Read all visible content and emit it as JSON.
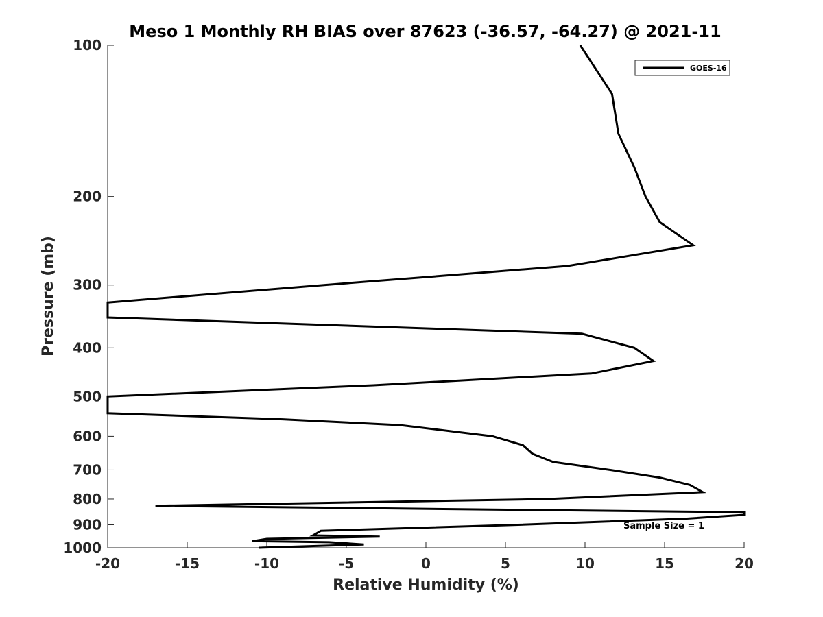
{
  "chart_data": {
    "type": "line",
    "title": "Meso 1 Monthly RH BIAS over 87623 (-36.57, -64.27) @ 2021-11",
    "xlabel": "Relative Humidity (%)",
    "ylabel": "Pressure (mb)",
    "xlim": [
      -20,
      20
    ],
    "ylim": [
      100,
      1000
    ],
    "yscale": "log",
    "y_reversed": true,
    "grid": false,
    "legend_position": "top-right",
    "x_ticks": [
      "-20",
      "-15",
      "-10",
      "-5",
      "0",
      "5",
      "10",
      "15",
      "20"
    ],
    "y_ticks": [
      "100",
      "200",
      "300",
      "400",
      "500",
      "600",
      "700",
      "800",
      "900",
      "1000"
    ],
    "annotation": "Sample Size = 1",
    "series": [
      {
        "name": "GOES-16",
        "color": "#000000",
        "points": [
          {
            "x": 9.7,
            "y": 100
          },
          {
            "x": 11.7,
            "y": 125
          },
          {
            "x": 12.1,
            "y": 150
          },
          {
            "x": 13.1,
            "y": 175
          },
          {
            "x": 13.8,
            "y": 200
          },
          {
            "x": 14.7,
            "y": 225
          },
          {
            "x": 16.8,
            "y": 250
          },
          {
            "x": 8.9,
            "y": 275
          },
          {
            "x": -6.4,
            "y": 300
          },
          {
            "x": -20,
            "y": 325
          },
          {
            "x": -20,
            "y": 348
          },
          {
            "x": 9.8,
            "y": 375
          },
          {
            "x": 13.1,
            "y": 400
          },
          {
            "x": 14.3,
            "y": 425
          },
          {
            "x": 10.4,
            "y": 450
          },
          {
            "x": -3.3,
            "y": 475
          },
          {
            "x": -20,
            "y": 500
          },
          {
            "x": -20,
            "y": 540
          },
          {
            "x": -9.0,
            "y": 555
          },
          {
            "x": -1.6,
            "y": 570
          },
          {
            "x": 4.2,
            "y": 600
          },
          {
            "x": 6.1,
            "y": 625
          },
          {
            "x": 6.7,
            "y": 650
          },
          {
            "x": 8.0,
            "y": 675
          },
          {
            "x": 11.6,
            "y": 700
          },
          {
            "x": 14.7,
            "y": 725
          },
          {
            "x": 16.6,
            "y": 750
          },
          {
            "x": 17.4,
            "y": 775
          },
          {
            "x": 7.6,
            "y": 800
          },
          {
            "x": -17.0,
            "y": 825
          },
          {
            "x": 20.0,
            "y": 850
          },
          {
            "x": 20.0,
            "y": 860
          },
          {
            "x": 16.4,
            "y": 875
          },
          {
            "x": 5.8,
            "y": 900
          },
          {
            "x": -6.6,
            "y": 925
          },
          {
            "x": -7.1,
            "y": 945
          },
          {
            "x": -2.9,
            "y": 950
          },
          {
            "x": -10.0,
            "y": 960
          },
          {
            "x": -10.9,
            "y": 970
          },
          {
            "x": -6.1,
            "y": 975
          },
          {
            "x": -3.9,
            "y": 985
          },
          {
            "x": -10.5,
            "y": 1000
          }
        ]
      }
    ]
  }
}
